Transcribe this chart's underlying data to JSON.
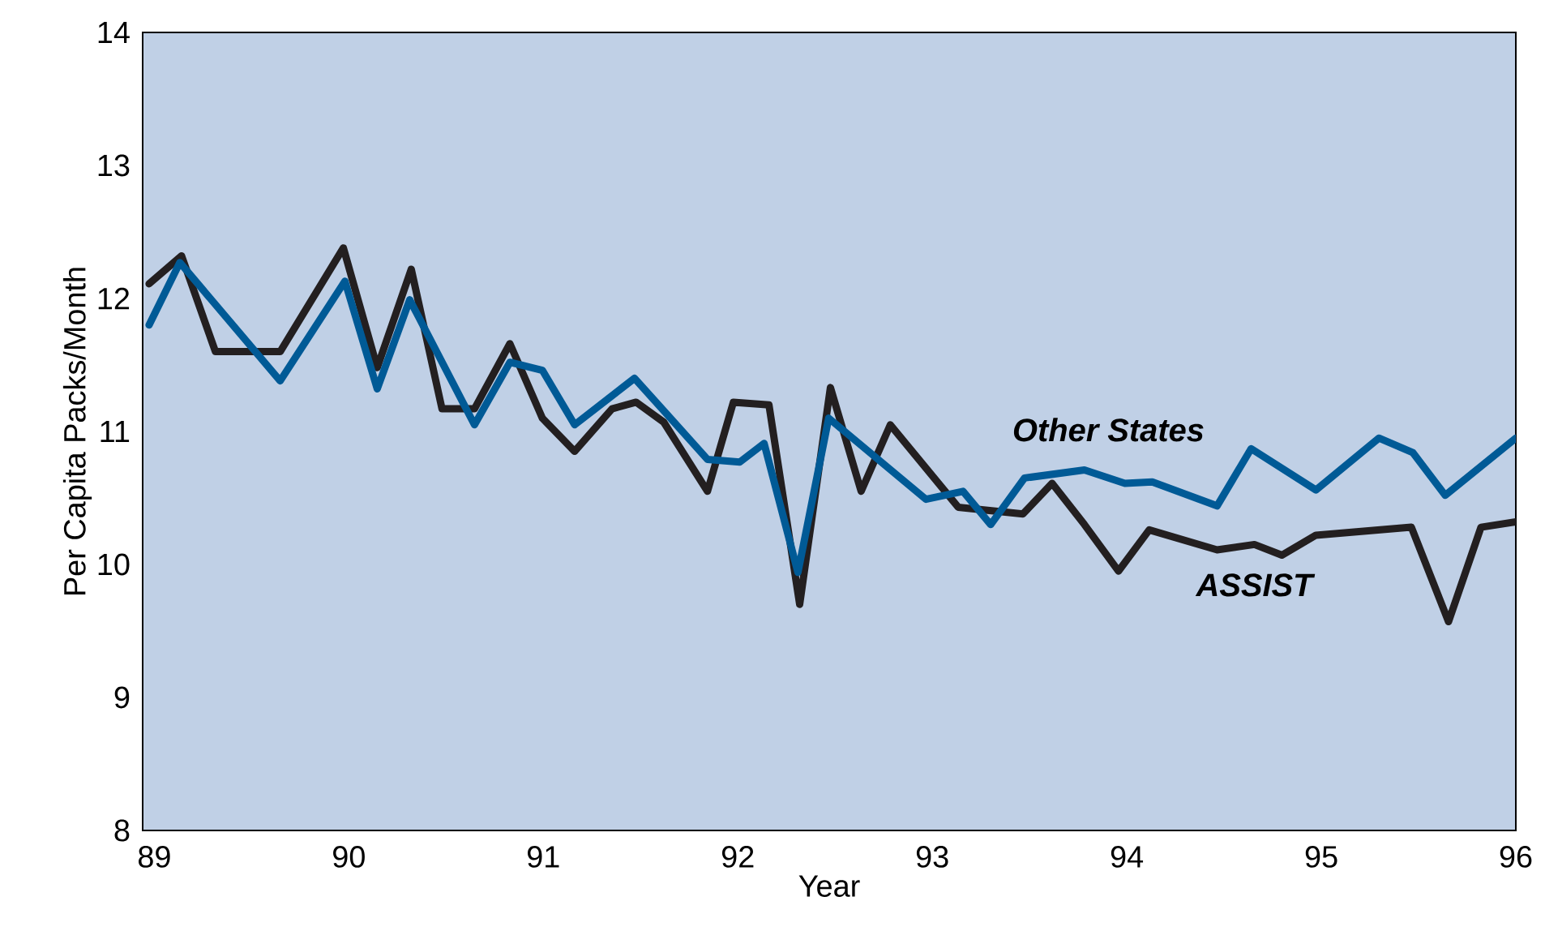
{
  "chart_data": {
    "type": "line",
    "xlabel": "Year",
    "ylabel": "Per Capita Packs/Month",
    "xlim": [
      88.94,
      96
    ],
    "xticks": [
      89,
      90,
      91,
      92,
      93,
      94,
      95,
      96
    ],
    "ylim": [
      8,
      14
    ],
    "yticks": [
      8,
      9,
      10,
      11,
      12,
      13,
      14
    ],
    "marker": "none",
    "line_style": "solid",
    "series": [
      {
        "name": "ASSIST",
        "color": "#231f20",
        "x": [
          88.973,
          89.14,
          89.314,
          89.647,
          89.972,
          90.146,
          90.321,
          90.479,
          90.646,
          90.828,
          90.995,
          91.161,
          91.353,
          91.477,
          91.619,
          91.844,
          91.977,
          92.16,
          92.318,
          92.476,
          92.634,
          92.784,
          93.133,
          93.466,
          93.616,
          93.782,
          93.957,
          94.115,
          94.464,
          94.656,
          94.797,
          94.972,
          95.463,
          95.654,
          95.821,
          96
        ],
        "values": [
          12.11,
          12.32,
          11.6,
          11.6,
          12.38,
          11.48,
          12.22,
          11.17,
          11.17,
          11.66,
          11.1,
          10.85,
          11.17,
          11.22,
          11.07,
          10.55,
          11.22,
          11.2,
          9.7,
          11.33,
          10.55,
          11.05,
          10.43,
          10.38,
          10.61,
          10.3,
          9.95,
          10.26,
          10.11,
          10.15,
          10.07,
          10.22,
          10.28,
          9.57,
          10.28,
          10.32
        ]
      },
      {
        "name": "Other States",
        "color": "#005a96",
        "x": [
          88.973,
          89.131,
          89.647,
          89.98,
          90.146,
          90.313,
          90.646,
          90.828,
          90.995,
          91.161,
          91.469,
          91.844,
          92.01,
          92.135,
          92.309,
          92.467,
          92.967,
          93.158,
          93.3,
          93.474,
          93.782,
          93.99,
          94.131,
          94.464,
          94.639,
          94.972,
          95.296,
          95.471,
          95.637,
          96
        ],
        "values": [
          11.8,
          12.27,
          11.38,
          12.13,
          11.32,
          11.99,
          11.05,
          11.52,
          11.46,
          11.05,
          11.4,
          10.79,
          10.77,
          10.91,
          9.94,
          11.1,
          10.49,
          10.55,
          10.3,
          10.65,
          10.71,
          10.61,
          10.62,
          10.44,
          10.87,
          10.56,
          10.95,
          10.84,
          10.52,
          10.95
        ]
      }
    ]
  }
}
